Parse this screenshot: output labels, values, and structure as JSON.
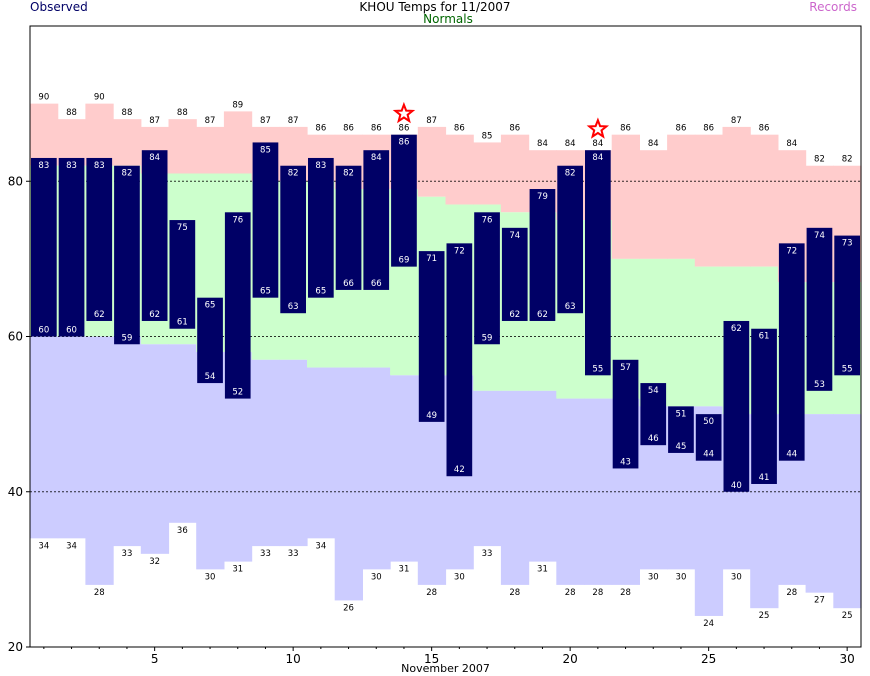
{
  "header": {
    "title": "KHOU Temps for 11/2007",
    "observed_label": "Observed",
    "normals_label": "Normals",
    "records_label": "Records"
  },
  "chart_data": {
    "type": "bar",
    "title": "KHOU Temps for 11/2007",
    "xlabel": "November 2007",
    "ylabel": "",
    "days": [
      1,
      2,
      3,
      4,
      5,
      6,
      7,
      8,
      9,
      10,
      11,
      12,
      13,
      14,
      15,
      16,
      17,
      18,
      19,
      20,
      21,
      22,
      23,
      24,
      25,
      26,
      27,
      28,
      29,
      30
    ],
    "xticks": [
      5,
      10,
      15,
      20,
      25,
      30
    ],
    "yticks": [
      20,
      40,
      60,
      80
    ],
    "ylim": [
      20,
      100
    ],
    "xlim": [
      0.5,
      30.5
    ],
    "grid_lines_at": [
      40,
      60,
      80
    ],
    "series": [
      {
        "name": "Observed",
        "key": "obs_high",
        "values": [
          83,
          83,
          83,
          82,
          84,
          75,
          65,
          76,
          85,
          82,
          83,
          82,
          84,
          86,
          71,
          72,
          76,
          74,
          79,
          82,
          84,
          57,
          54,
          51,
          50,
          62,
          61,
          72,
          74,
          73
        ]
      },
      {
        "name": "Observed",
        "key": "obs_low",
        "values": [
          60,
          60,
          62,
          59,
          62,
          61,
          54,
          52,
          65,
          63,
          65,
          66,
          66,
          69,
          49,
          42,
          59,
          62,
          62,
          63,
          55,
          43,
          46,
          45,
          44,
          40,
          41,
          44,
          53,
          55
        ]
      },
      {
        "name": "Records",
        "key": "record_high",
        "values": [
          90,
          88,
          90,
          88,
          87,
          88,
          87,
          89,
          87,
          87,
          86,
          86,
          86,
          86,
          87,
          86,
          85,
          86,
          84,
          84,
          84,
          86,
          84,
          86,
          86,
          87,
          86,
          84,
          82,
          82
        ]
      },
      {
        "name": "Records",
        "key": "record_low",
        "values": [
          34,
          34,
          28,
          33,
          32,
          36,
          30,
          31,
          33,
          33,
          34,
          26,
          30,
          31,
          28,
          30,
          33,
          28,
          31,
          28,
          28,
          28,
          30,
          30,
          24,
          30,
          25,
          28,
          27,
          25
        ]
      },
      {
        "name": "Normals",
        "key": "normal_high",
        "values": [
          82,
          82,
          82,
          82,
          81,
          81,
          81,
          81,
          80,
          80,
          80,
          79,
          79,
          79,
          78,
          77,
          77,
          76,
          76,
          75,
          75,
          70,
          70,
          70,
          69,
          69,
          69,
          67,
          67,
          67
        ]
      },
      {
        "name": "Normals",
        "key": "normal_low",
        "values": [
          60,
          60,
          60,
          60,
          59,
          59,
          58,
          58,
          57,
          57,
          56,
          56,
          56,
          55,
          55,
          55,
          53,
          53,
          53,
          52,
          52,
          52,
          51,
          51,
          51,
          50,
          50,
          50,
          50,
          50
        ]
      }
    ],
    "record_set_days": [
      14,
      21
    ],
    "colors": {
      "observed_bar": "#000066",
      "record_band": "#ffcccc",
      "normal_band": "#ccffcc",
      "low_band": "#ccccff",
      "star": "#ff0000",
      "observed_label": "#000066",
      "normals_label": "#006600",
      "records_label": "#cc66cc",
      "gridline": "#000000"
    }
  }
}
